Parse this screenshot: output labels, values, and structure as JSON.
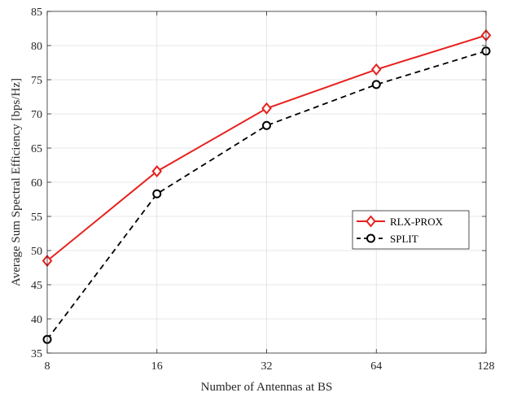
{
  "chart_data": {
    "type": "line",
    "x": [
      8,
      16,
      32,
      64,
      128
    ],
    "x_tick_labels": [
      "8",
      "16",
      "32",
      "64",
      "128"
    ],
    "x_scale": "log2",
    "xlabel": "Number of Antennas at BS",
    "ylabel": "Average Sum Spectral Efficiency [bps/Hz]",
    "ylim": [
      35,
      85
    ],
    "y_ticks": [
      35,
      40,
      45,
      50,
      55,
      60,
      65,
      70,
      75,
      80,
      85
    ],
    "grid": true,
    "legend_position": "middle-right",
    "series": [
      {
        "name": "RLX-PROX",
        "values": [
          48.5,
          61.6,
          70.8,
          76.5,
          81.5
        ],
        "color": "#e8201d",
        "line_style": "solid",
        "marker": "diamond"
      },
      {
        "name": "SPLIT",
        "values": [
          37.0,
          58.3,
          68.3,
          74.3,
          79.2
        ],
        "color": "#000000",
        "line_style": "dashed",
        "marker": "circle"
      }
    ]
  }
}
